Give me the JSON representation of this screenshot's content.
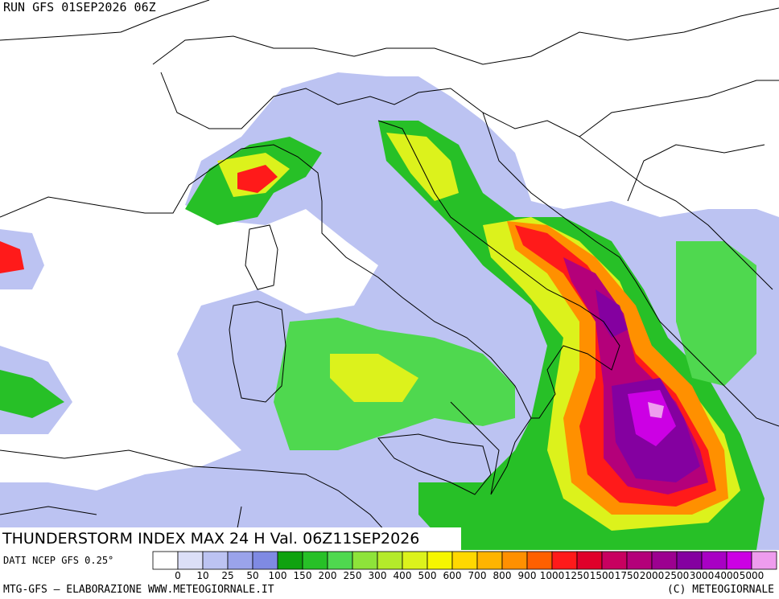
{
  "header": {
    "run": "RUN GFS 01SEP2026 06Z"
  },
  "map": {
    "title": "THUNDERSTORM INDEX MAX 24 H Val. 06Z11SEP2026"
  },
  "legend": {
    "levels": [
      0,
      10,
      25,
      50,
      100,
      150,
      200,
      250,
      300,
      400,
      500,
      600,
      700,
      800,
      900,
      1000,
      1250,
      1500,
      1750,
      2000,
      2500,
      3000,
      4000,
      5000
    ],
    "colors": [
      "#ffffff",
      "#dcdff7",
      "#bcc3f2",
      "#9aa3ea",
      "#7f8ae3",
      "#0fa20f",
      "#27c027",
      "#4fd84f",
      "#8ee33a",
      "#b4ea2a",
      "#dcf21c",
      "#f6f600",
      "#ffd800",
      "#ffb400",
      "#ff9000",
      "#ff6000",
      "#ff1a1a",
      "#e0002a",
      "#c80060",
      "#b4007a",
      "#9c0090",
      "#8400a0",
      "#a800c4",
      "#cc00e4",
      "#ee9cee"
    ]
  },
  "footer": {
    "source": "DATI NCEP GFS 0.25°",
    "credit": "MTG-GFS – ELABORAZIONE WWW.METEOGIORNALE.IT",
    "copyright": "(C) METEOGIORNALE"
  }
}
